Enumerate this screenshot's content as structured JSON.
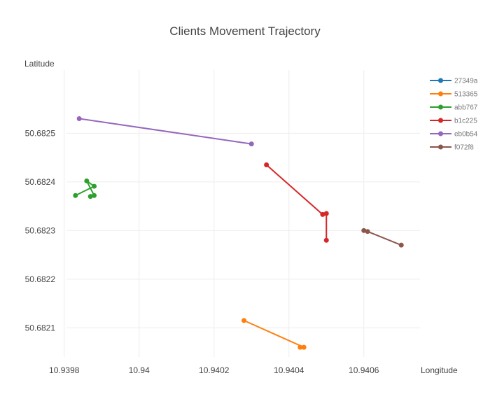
{
  "chart_data": {
    "type": "line",
    "title": "Clients Movement Trajectory",
    "xlabel": "Longitude",
    "ylabel": "Latitude",
    "grid": true,
    "legend_position": "right",
    "xlim": [
      10.93975,
      10.94075
    ],
    "ylim": [
      50.68204,
      50.68263
    ],
    "x_ticks": [
      10.9398,
      10.94,
      10.9402,
      10.9404,
      10.9406
    ],
    "x_tick_labels": [
      "10.9398",
      "10.94",
      "10.9402",
      "10.9404",
      "10.9406"
    ],
    "y_ticks": [
      50.6821,
      50.6822,
      50.6823,
      50.6824,
      50.6825
    ],
    "y_tick_labels": [
      "50.6821",
      "50.6822",
      "50.6823",
      "50.6824",
      "50.6825"
    ],
    "series": [
      {
        "name": "27349a",
        "color": "#1f77b4",
        "points": []
      },
      {
        "name": "513365",
        "color": "#ff7f0e",
        "points": [
          [
            10.94028,
            50.682115
          ],
          [
            10.94044,
            50.68206
          ],
          [
            10.94043,
            50.68206
          ]
        ]
      },
      {
        "name": "abb767",
        "color": "#2ca02c",
        "points": [
          [
            10.93983,
            50.682372
          ],
          [
            10.93988,
            50.682391
          ],
          [
            10.93986,
            50.682402
          ],
          [
            10.93988,
            50.682372
          ],
          [
            10.93987,
            50.68237
          ]
        ]
      },
      {
        "name": "b1c225",
        "color": "#d62728",
        "points": [
          [
            10.94034,
            50.682435
          ],
          [
            10.94049,
            50.682333
          ],
          [
            10.9405,
            50.682335
          ],
          [
            10.9405,
            50.68228
          ]
        ]
      },
      {
        "name": "eb0b54",
        "color": "#9467bd",
        "points": [
          [
            10.93984,
            50.68253
          ],
          [
            10.9403,
            50.682478
          ]
        ]
      },
      {
        "name": "f072f8",
        "color": "#8c564b",
        "points": [
          [
            10.9406,
            50.6823
          ],
          [
            10.94061,
            50.682298
          ],
          [
            10.9407,
            50.68227
          ]
        ]
      }
    ]
  }
}
